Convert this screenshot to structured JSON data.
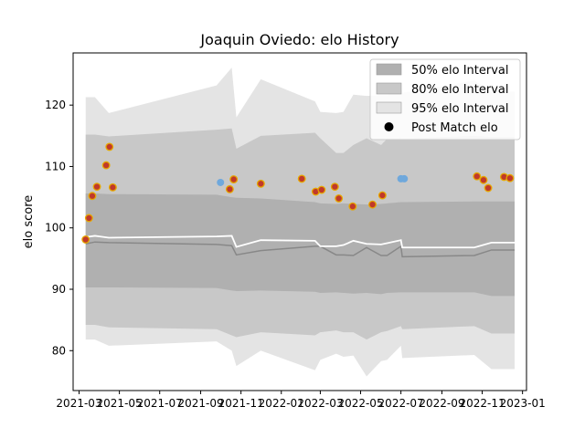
{
  "chart_data": {
    "type": "line",
    "title": "Joaquin Oviedo: elo History",
    "xlabel": "",
    "ylabel": "elo score",
    "xlim": [
      "2021-02-20",
      "2023-01-07"
    ],
    "ylim": [
      73.5,
      128.5
    ],
    "x_ticks": [
      "2021-03",
      "2021-05",
      "2021-07",
      "2021-09",
      "2021-11",
      "2022-01",
      "2022-03",
      "2022-05",
      "2022-07",
      "2022-09",
      "2022-11",
      "2023-01"
    ],
    "y_ticks": [
      80,
      90,
      100,
      110,
      120
    ],
    "grid": false,
    "legend_position": "top-right",
    "legend": [
      "50% elo Interval",
      "80% elo Interval",
      "95% elo Interval",
      "Post Match elo"
    ],
    "colors": {
      "band_50": "#b0b0b0",
      "band_80": "#c8c8c8",
      "band_95": "#e4e4e4",
      "mean_line": "#ffffff",
      "median_line": "#888888",
      "point_fill": "#c0392b",
      "point_edge": "#e6a800",
      "no_match_point": "#6fa8dc"
    },
    "bands": {
      "dates": [
        "2021-03-11",
        "2021-03-25",
        "2021-04-15",
        "2021-09-25",
        "2021-10-18",
        "2021-10-25",
        "2021-12-01",
        "2022-02-21",
        "2022-03-01",
        "2022-03-25",
        "2022-04-05",
        "2022-04-20",
        "2022-05-10",
        "2022-06-01",
        "2022-06-10",
        "2022-07-01",
        "2022-07-03",
        "2022-10-20",
        "2022-11-15",
        "2022-12-20"
      ],
      "p95_low": [
        81.8,
        81.8,
        80.8,
        81.5,
        80.0,
        77.5,
        80.0,
        76.8,
        78.5,
        79.5,
        79.0,
        79.2,
        75.8,
        78.3,
        78.5,
        80.8,
        78.8,
        79.3,
        77.0,
        77.0
      ],
      "p80_low": [
        84.2,
        84.2,
        83.8,
        83.5,
        82.5,
        82.2,
        83.0,
        82.5,
        83.0,
        83.3,
        83.0,
        83.0,
        81.8,
        83.0,
        83.2,
        84.0,
        83.5,
        84.0,
        82.8,
        82.8
      ],
      "p50_low": [
        90.3,
        90.3,
        90.3,
        90.2,
        89.8,
        89.7,
        89.8,
        89.6,
        89.4,
        89.5,
        89.4,
        89.3,
        89.4,
        89.2,
        89.4,
        89.5,
        89.5,
        89.5,
        88.9,
        88.9
      ],
      "p50_high": [
        105.6,
        105.6,
        105.5,
        105.4,
        105.0,
        104.9,
        104.8,
        104.2,
        104.0,
        103.9,
        104.0,
        103.9,
        103.8,
        103.9,
        104.0,
        104.2,
        104.2,
        104.3,
        104.3,
        104.3
      ],
      "p80_high": [
        115.2,
        115.2,
        114.9,
        116.0,
        116.2,
        112.9,
        115.0,
        115.5,
        114.6,
        112.2,
        112.2,
        113.5,
        114.6,
        113.5,
        114.5,
        114.6,
        114.5,
        115.0,
        114.8,
        114.8
      ],
      "p95_high": [
        121.3,
        121.3,
        118.7,
        123.2,
        126.1,
        118.0,
        124.2,
        120.6,
        118.9,
        118.7,
        118.9,
        121.7,
        121.5,
        121.6,
        121.6,
        123.1,
        122.0,
        124.0,
        122.2,
        122.2
      ],
      "mean": [
        98.5,
        98.7,
        98.4,
        98.6,
        98.7,
        96.9,
        98.0,
        97.9,
        97.0,
        97.0,
        97.2,
        97.9,
        97.4,
        97.3,
        97.5,
        98.0,
        96.8,
        96.8,
        97.6,
        97.6
      ],
      "median": [
        97.4,
        97.7,
        97.6,
        97.3,
        97.1,
        95.6,
        96.3,
        97.0,
        97.0,
        95.6,
        95.6,
        95.5,
        96.8,
        95.5,
        95.5,
        97.0,
        95.3,
        95.5,
        96.4,
        96.4
      ]
    },
    "post_match_points": [
      {
        "x": "2021-03-11",
        "y": 98.1
      },
      {
        "x": "2021-03-16",
        "y": 101.6
      },
      {
        "x": "2021-03-21",
        "y": 105.2
      },
      {
        "x": "2021-03-28",
        "y": 106.7
      },
      {
        "x": "2021-04-11",
        "y": 110.2
      },
      {
        "x": "2021-04-16",
        "y": 113.2
      },
      {
        "x": "2021-04-21",
        "y": 106.6
      },
      {
        "x": "2021-10-15",
        "y": 106.3
      },
      {
        "x": "2021-10-21",
        "y": 107.9
      },
      {
        "x": "2021-12-01",
        "y": 107.2
      },
      {
        "x": "2022-02-01",
        "y": 108.0
      },
      {
        "x": "2022-02-22",
        "y": 105.9
      },
      {
        "x": "2022-03-03",
        "y": 106.2
      },
      {
        "x": "2022-03-23",
        "y": 106.7
      },
      {
        "x": "2022-03-29",
        "y": 104.8
      },
      {
        "x": "2022-04-19",
        "y": 103.5
      },
      {
        "x": "2022-05-19",
        "y": 103.8
      },
      {
        "x": "2022-06-03",
        "y": 105.3
      },
      {
        "x": "2022-10-24",
        "y": 108.4
      },
      {
        "x": "2022-11-03",
        "y": 107.8
      },
      {
        "x": "2022-11-10",
        "y": 106.5
      },
      {
        "x": "2022-12-04",
        "y": 108.3
      },
      {
        "x": "2022-12-13",
        "y": 108.1
      }
    ],
    "no_match_points": [
      {
        "x": "2021-10-01",
        "y": 107.4
      },
      {
        "x": "2022-07-01",
        "y": 108.0
      },
      {
        "x": "2022-07-06",
        "y": 108.0
      }
    ]
  }
}
